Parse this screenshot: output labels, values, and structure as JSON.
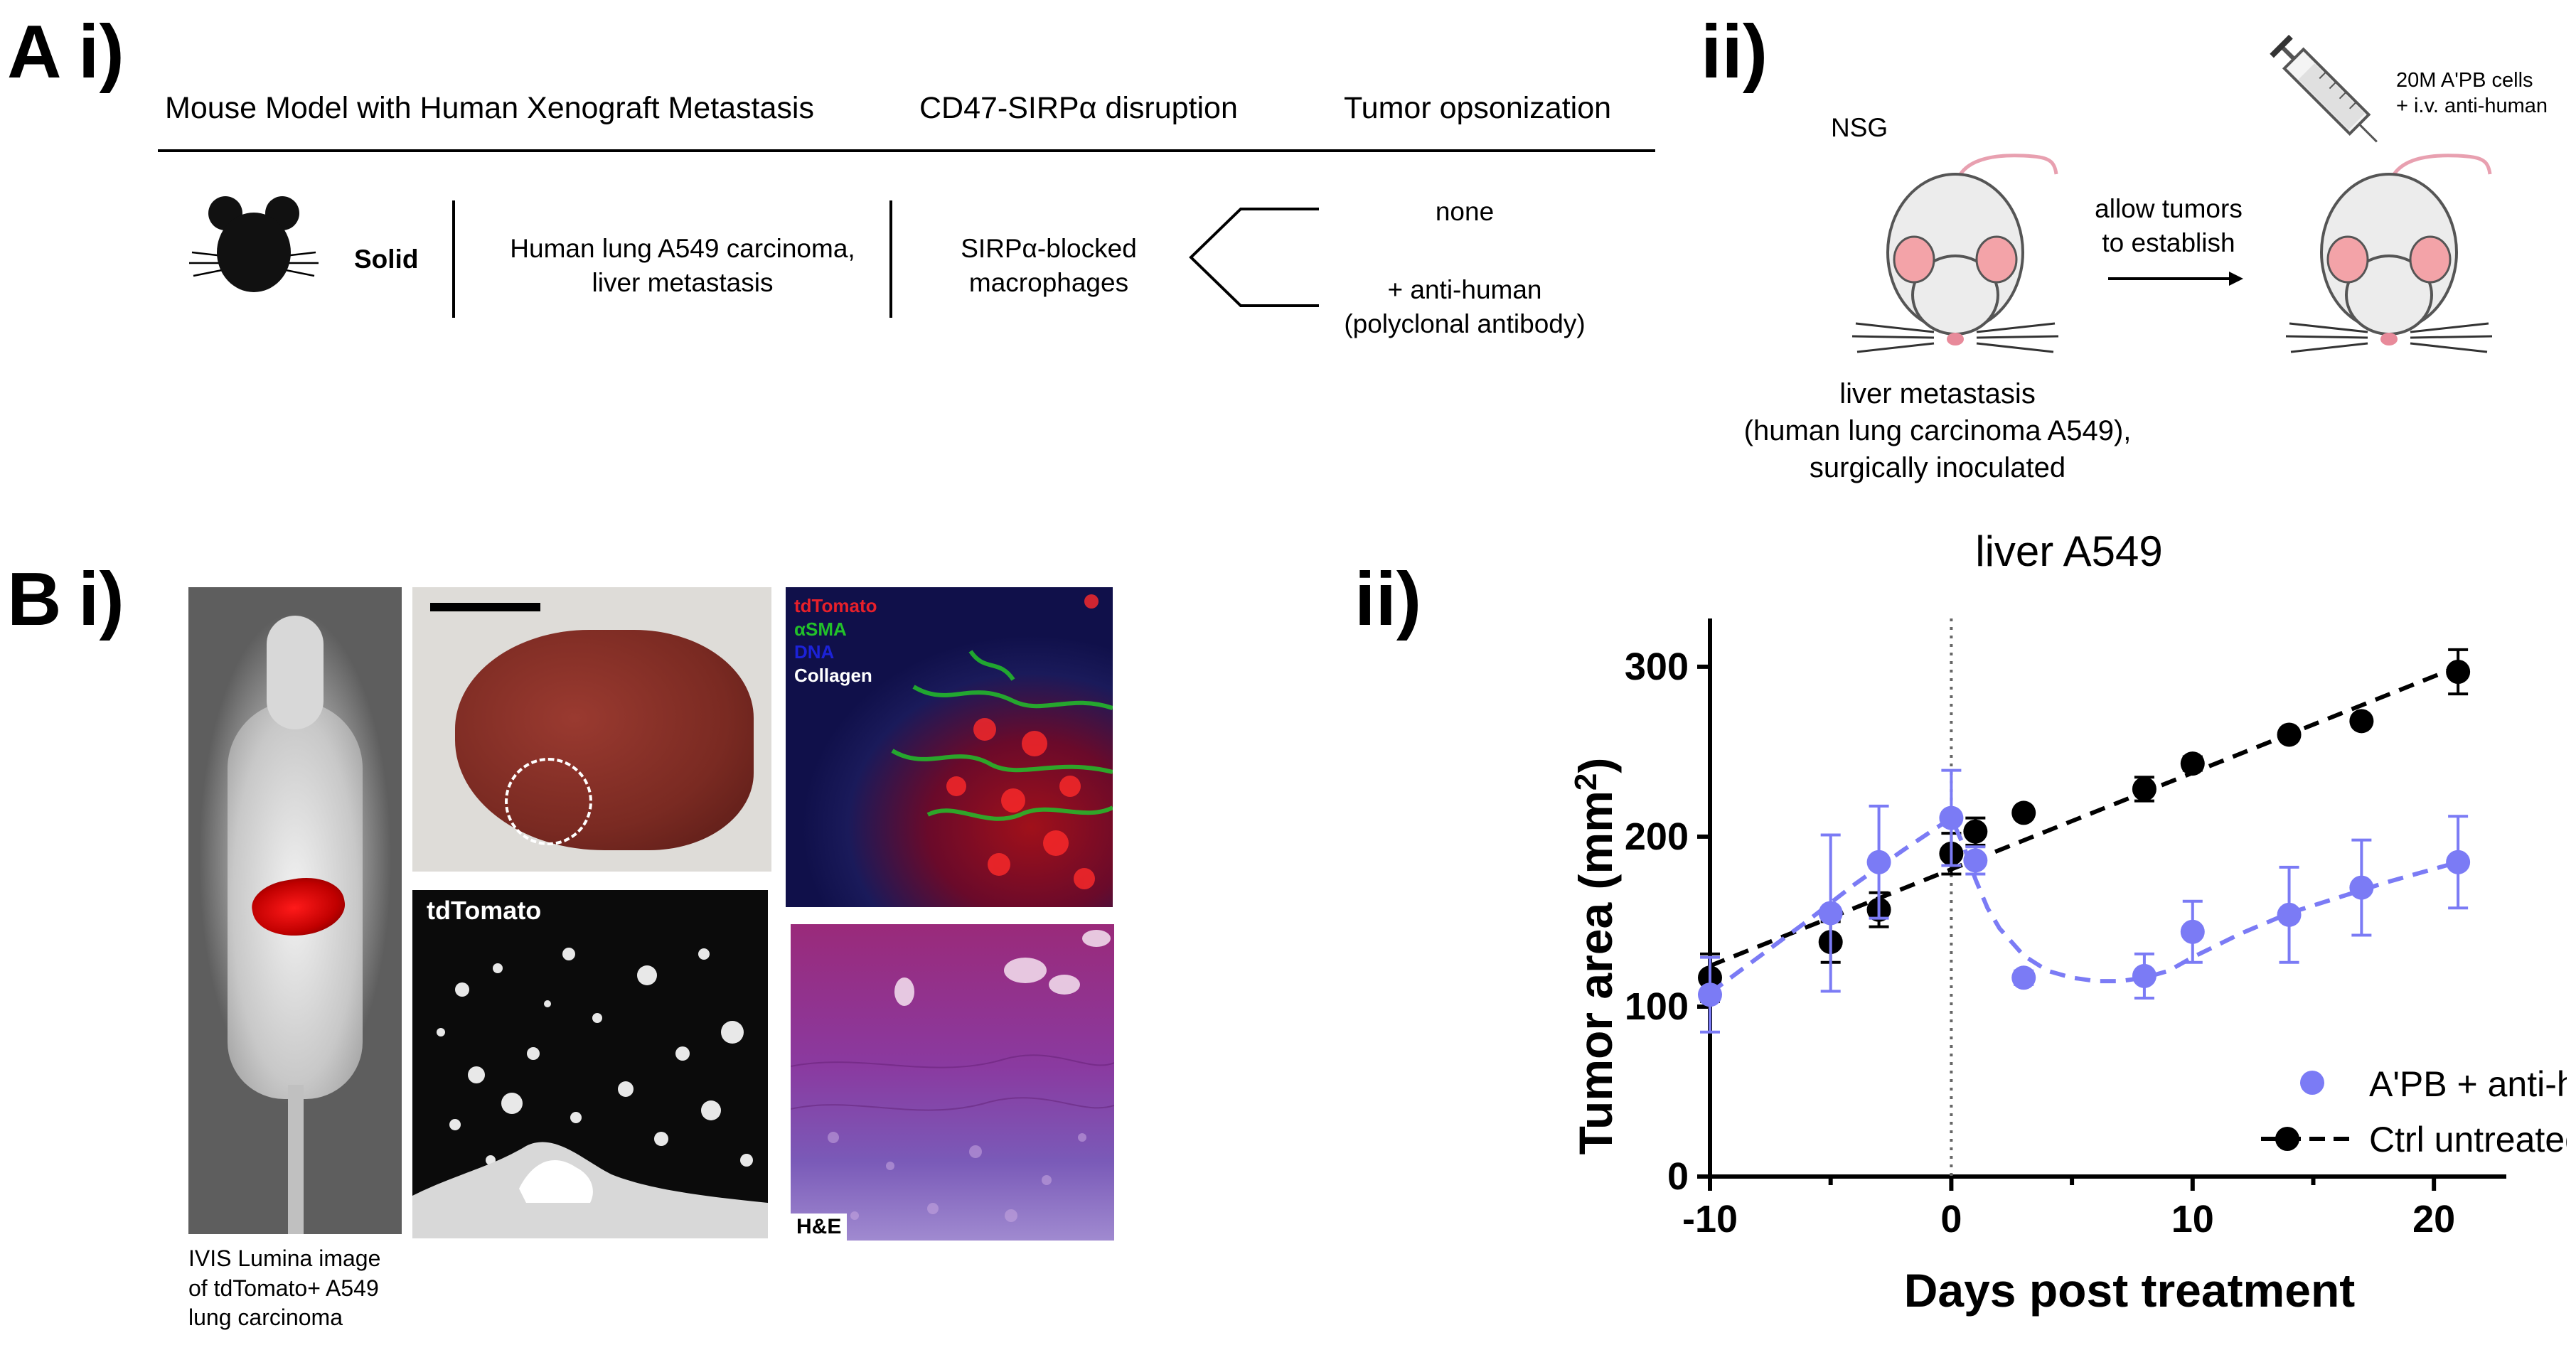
{
  "panelA": {
    "label": "A",
    "sub_i": "i)",
    "sub_ii": "ii)",
    "headers": [
      "Mouse Model with Human Xenograft Metastasis",
      "CD47-SIRPα disruption",
      "Tumor opsonization"
    ],
    "row": {
      "type": "Solid",
      "model": "Human lung A549 carcinoma, liver metastasis",
      "model_line1": "Human lung A549 carcinoma,",
      "model_line2": "liver metastasis",
      "disruption_line1": "SIRPα-blocked",
      "disruption_line2": "macrophages",
      "opsonization_none": "none",
      "opsonization_anti_line1": "+ anti-human",
      "opsonization_anti_line2": "(polyclonal antibody)"
    },
    "schematic": {
      "strain": "NSG",
      "arrow_line1": "allow tumors",
      "arrow_line2": "to establish",
      "syringe_line1": "20M A'PB cells",
      "syringe_line2": "+ i.v. anti-human",
      "caption_line1": "liver metastasis",
      "caption_line2": "(human lung carcinoma A549),",
      "caption_line3": "surgically inoculated"
    }
  },
  "panelB": {
    "label": "B",
    "sub_i": "i)",
    "sub_ii": "ii)",
    "ivis_caption_line1": "IVIS Lumina image",
    "ivis_caption_line2": "of tdTomato+ A549",
    "ivis_caption_line3": "lung carcinoma",
    "tdtomato_label": "tdTomato",
    "if_legend": {
      "tdTomato": "tdTomato",
      "aSMA": "αSMA",
      "DNA": "DNA",
      "collagen": "Collagen"
    },
    "he_label": "H&E",
    "colors": {
      "tdTomato": "#e8202a",
      "aSMA": "#22c02a",
      "DNA": "#1c22d8",
      "collagen": "#ffffff"
    }
  },
  "chart_data": {
    "type": "line",
    "title": "liver A549",
    "xlabel": "Days post treatment",
    "ylabel": "Tumor area (mm²)",
    "ylabel_main": "Tumor area (mm",
    "ylabel_sup": "2",
    "ylabel_end": ")",
    "xlim": [
      -10,
      23
    ],
    "ylim": [
      0,
      320
    ],
    "xticks": [
      -10,
      0,
      10,
      20
    ],
    "yticks": [
      0,
      100,
      200,
      300
    ],
    "xtick_labels": [
      "-10",
      "0",
      "10",
      "20"
    ],
    "ytick_labels": [
      "0",
      "100",
      "200",
      "300"
    ],
    "treatment_day": 0,
    "legend_position": "bottom-right",
    "series": [
      {
        "name": "A'PB + anti-human",
        "color": "#7b7bf5",
        "marker": "circle",
        "line": "dashed fit",
        "x": [
          -10,
          -5,
          -3,
          0,
          1,
          3,
          8,
          10,
          14,
          17,
          21
        ],
        "y": [
          107,
          155,
          185,
          211,
          186,
          117,
          118,
          144,
          154,
          170,
          185
        ],
        "err": [
          22,
          46,
          33,
          28,
          8,
          4,
          13,
          18,
          28,
          28,
          27
        ],
        "fit_x": [
          -10,
          -8,
          -6,
          -4,
          -2,
          0,
          0.5,
          1,
          1.5,
          2,
          3,
          4,
          5,
          6,
          7,
          8,
          9,
          10,
          12,
          14,
          16,
          18,
          21
        ],
        "fit_y": [
          108,
          129,
          150,
          172,
          192,
          211,
          195,
          175,
          158,
          146,
          130,
          121,
          117,
          115,
          115,
          117,
          121,
          129,
          143,
          155,
          164,
          173,
          185
        ]
      },
      {
        "name": "Ctrl untreated",
        "color": "#000000",
        "marker": "circle",
        "line": "dashed linear fit",
        "x": [
          -10,
          -5,
          -3,
          0,
          1,
          3,
          8,
          10,
          14,
          17,
          21
        ],
        "y": [
          117,
          138,
          157,
          190,
          203,
          214,
          228,
          243,
          260,
          268,
          297
        ],
        "err": [
          14,
          12,
          10,
          12,
          8,
          3,
          7,
          4,
          3,
          3,
          13
        ],
        "fit_x": [
          -10,
          21
        ],
        "fit_y": [
          124,
          300
        ]
      }
    ]
  }
}
